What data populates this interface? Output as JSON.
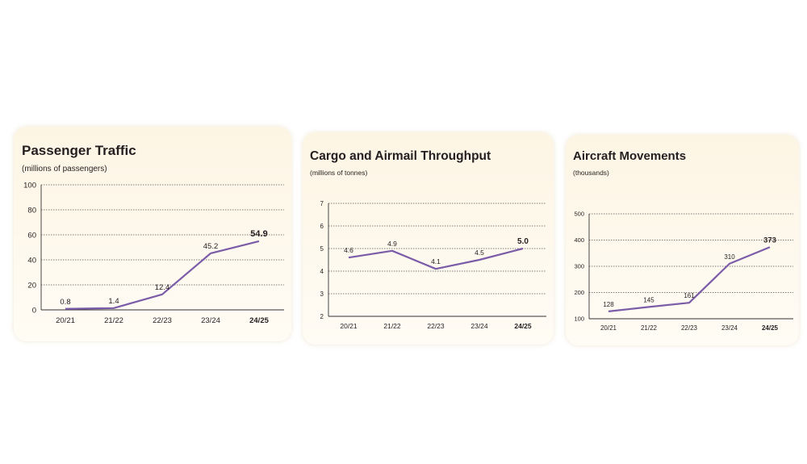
{
  "colors": {
    "line": "#7b5ca8",
    "highlight": "#7b5ca8"
  },
  "chart_data": [
    {
      "type": "line",
      "title": "Passenger Traffic",
      "subtitle": "(millions of passengers)",
      "categories": [
        "20/21",
        "21/22",
        "22/23",
        "23/24",
        "24/25"
      ],
      "bold_category": "24/25",
      "series": [
        {
          "name": "Passenger Traffic",
          "values": [
            0.8,
            1.4,
            12.4,
            45.2,
            54.9
          ]
        }
      ],
      "data_labels": [
        "0.8",
        "1.4",
        "12.4",
        "45.2",
        "54.9"
      ],
      "ylim": [
        0,
        100
      ],
      "yticks": [
        0,
        20,
        40,
        60,
        80,
        100
      ],
      "grid": true
    },
    {
      "type": "line",
      "title": "Cargo and Airmail Throughput",
      "subtitle": "(millions of tonnes)",
      "categories": [
        "20/21",
        "21/22",
        "22/23",
        "23/24",
        "24/25"
      ],
      "bold_category": "24/25",
      "series": [
        {
          "name": "Cargo and Airmail Throughput",
          "values": [
            4.6,
            4.9,
            4.1,
            4.5,
            5.0
          ]
        }
      ],
      "data_labels": [
        "4.6",
        "4.9",
        "4.1",
        "4.5",
        "5.0"
      ],
      "ylim": [
        2,
        7
      ],
      "yticks": [
        2,
        3,
        4,
        5,
        6,
        7
      ],
      "grid": true
    },
    {
      "type": "line",
      "title": "Aircraft Movements",
      "subtitle": "(thousands)",
      "categories": [
        "20/21",
        "21/22",
        "22/23",
        "23/24",
        "24/25"
      ],
      "bold_category": "24/25",
      "series": [
        {
          "name": "Aircraft Movements",
          "values": [
            128,
            145,
            161,
            310,
            373
          ]
        }
      ],
      "data_labels": [
        "128",
        "145",
        "161",
        "310",
        "373"
      ],
      "ylim": [
        100,
        500
      ],
      "yticks": [
        100,
        200,
        300,
        400,
        500
      ],
      "grid": true
    }
  ]
}
